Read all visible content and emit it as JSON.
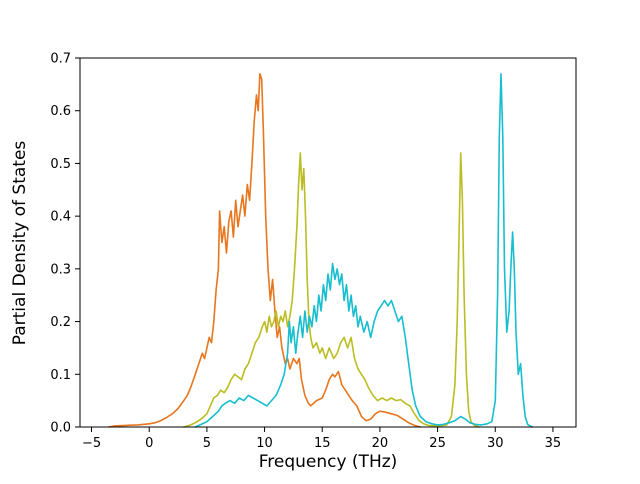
{
  "chart_data": {
    "type": "line",
    "title": "",
    "xlabel": "Frequency (THz)",
    "ylabel": "Partial Density of States",
    "xlim": [
      -6,
      37
    ],
    "ylim": [
      0,
      0.7
    ],
    "xtick_values": [
      -5,
      0,
      5,
      10,
      15,
      20,
      25,
      30,
      35
    ],
    "xtick_labels": [
      "−5",
      "0",
      "5",
      "10",
      "15",
      "20",
      "25",
      "30",
      "35"
    ],
    "ytick_values": [
      0.0,
      0.1,
      0.2,
      0.3,
      0.4,
      0.5,
      0.6,
      0.7
    ],
    "ytick_labels": [
      "0.0",
      "0.1",
      "0.2",
      "0.3",
      "0.4",
      "0.5",
      "0.6",
      "0.7"
    ],
    "grid": false,
    "legend_position": "none",
    "axes_color": "#000000",
    "background_color": "#ffffff",
    "series": [
      {
        "name": "orange-series",
        "color": "#e8761e",
        "points": [
          [
            -3.5,
            0
          ],
          [
            -3,
            0.002
          ],
          [
            -2,
            0.003
          ],
          [
            -1,
            0.004
          ],
          [
            0,
            0.006
          ],
          [
            0.5,
            0.008
          ],
          [
            1,
            0.012
          ],
          [
            1.5,
            0.018
          ],
          [
            2,
            0.025
          ],
          [
            2.5,
            0.035
          ],
          [
            3,
            0.05
          ],
          [
            3.3,
            0.06
          ],
          [
            3.6,
            0.075
          ],
          [
            4,
            0.1
          ],
          [
            4.3,
            0.12
          ],
          [
            4.6,
            0.14
          ],
          [
            4.8,
            0.13
          ],
          [
            5,
            0.15
          ],
          [
            5.2,
            0.17
          ],
          [
            5.4,
            0.16
          ],
          [
            5.6,
            0.2
          ],
          [
            5.8,
            0.26
          ],
          [
            6,
            0.3
          ],
          [
            6.1,
            0.41
          ],
          [
            6.3,
            0.35
          ],
          [
            6.5,
            0.38
          ],
          [
            6.7,
            0.33
          ],
          [
            6.9,
            0.39
          ],
          [
            7.1,
            0.41
          ],
          [
            7.3,
            0.36
          ],
          [
            7.5,
            0.43
          ],
          [
            7.7,
            0.38
          ],
          [
            7.9,
            0.41
          ],
          [
            8.1,
            0.44
          ],
          [
            8.3,
            0.4
          ],
          [
            8.5,
            0.46
          ],
          [
            8.7,
            0.43
          ],
          [
            8.9,
            0.5
          ],
          [
            9.1,
            0.58
          ],
          [
            9.3,
            0.63
          ],
          [
            9.45,
            0.6
          ],
          [
            9.6,
            0.67
          ],
          [
            9.75,
            0.66
          ],
          [
            9.9,
            0.56
          ],
          [
            10.1,
            0.4
          ],
          [
            10.3,
            0.3
          ],
          [
            10.5,
            0.24
          ],
          [
            10.7,
            0.28
          ],
          [
            10.9,
            0.22
          ],
          [
            11.1,
            0.17
          ],
          [
            11.3,
            0.19
          ],
          [
            11.5,
            0.15
          ],
          [
            11.8,
            0.12
          ],
          [
            12,
            0.13
          ],
          [
            12.2,
            0.11
          ],
          [
            12.5,
            0.13
          ],
          [
            12.8,
            0.12
          ],
          [
            13,
            0.13
          ],
          [
            13.2,
            0.09
          ],
          [
            13.5,
            0.06
          ],
          [
            13.8,
            0.045
          ],
          [
            14,
            0.04
          ],
          [
            14.5,
            0.05
          ],
          [
            15,
            0.055
          ],
          [
            15.3,
            0.07
          ],
          [
            15.6,
            0.09
          ],
          [
            15.9,
            0.1
          ],
          [
            16.1,
            0.095
          ],
          [
            16.4,
            0.105
          ],
          [
            16.7,
            0.08
          ],
          [
            17,
            0.07
          ],
          [
            17.3,
            0.06
          ],
          [
            17.6,
            0.05
          ],
          [
            18,
            0.04
          ],
          [
            18.4,
            0.02
          ],
          [
            18.8,
            0.012
          ],
          [
            19.2,
            0.015
          ],
          [
            19.6,
            0.025
          ],
          [
            20,
            0.03
          ],
          [
            20.5,
            0.028
          ],
          [
            21,
            0.025
          ],
          [
            21.5,
            0.022
          ],
          [
            22,
            0.015
          ],
          [
            22.5,
            0.008
          ],
          [
            23,
            0.003
          ],
          [
            23.5,
            0
          ]
        ]
      },
      {
        "name": "olive-series",
        "color": "#bcbd22",
        "points": [
          [
            3,
            0
          ],
          [
            3.5,
            0.003
          ],
          [
            4,
            0.008
          ],
          [
            4.5,
            0.015
          ],
          [
            5,
            0.025
          ],
          [
            5.3,
            0.04
          ],
          [
            5.6,
            0.055
          ],
          [
            5.9,
            0.06
          ],
          [
            6.2,
            0.07
          ],
          [
            6.5,
            0.065
          ],
          [
            6.8,
            0.075
          ],
          [
            7.1,
            0.09
          ],
          [
            7.4,
            0.1
          ],
          [
            7.7,
            0.095
          ],
          [
            8,
            0.09
          ],
          [
            8.3,
            0.11
          ],
          [
            8.6,
            0.12
          ],
          [
            8.9,
            0.14
          ],
          [
            9.2,
            0.16
          ],
          [
            9.5,
            0.17
          ],
          [
            9.8,
            0.19
          ],
          [
            10,
            0.2
          ],
          [
            10.2,
            0.18
          ],
          [
            10.4,
            0.21
          ],
          [
            10.6,
            0.19
          ],
          [
            10.8,
            0.2
          ],
          [
            11,
            0.22
          ],
          [
            11.2,
            0.19
          ],
          [
            11.4,
            0.21
          ],
          [
            11.6,
            0.2
          ],
          [
            11.8,
            0.22
          ],
          [
            12,
            0.19
          ],
          [
            12.2,
            0.21
          ],
          [
            12.4,
            0.24
          ],
          [
            12.6,
            0.3
          ],
          [
            12.8,
            0.38
          ],
          [
            12.95,
            0.46
          ],
          [
            13.1,
            0.52
          ],
          [
            13.25,
            0.45
          ],
          [
            13.4,
            0.49
          ],
          [
            13.55,
            0.4
          ],
          [
            13.7,
            0.28
          ],
          [
            13.85,
            0.2
          ],
          [
            14,
            0.17
          ],
          [
            14.2,
            0.15
          ],
          [
            14.5,
            0.16
          ],
          [
            14.8,
            0.14
          ],
          [
            15,
            0.15
          ],
          [
            15.3,
            0.13
          ],
          [
            15.6,
            0.15
          ],
          [
            16,
            0.13
          ],
          [
            16.3,
            0.14
          ],
          [
            16.6,
            0.16
          ],
          [
            16.9,
            0.17
          ],
          [
            17.2,
            0.15
          ],
          [
            17.5,
            0.17
          ],
          [
            17.8,
            0.13
          ],
          [
            18.1,
            0.11
          ],
          [
            18.4,
            0.1
          ],
          [
            18.7,
            0.09
          ],
          [
            19,
            0.075
          ],
          [
            19.4,
            0.06
          ],
          [
            19.8,
            0.05
          ],
          [
            20.2,
            0.055
          ],
          [
            20.6,
            0.05
          ],
          [
            21,
            0.055
          ],
          [
            21.4,
            0.05
          ],
          [
            21.8,
            0.052
          ],
          [
            22.2,
            0.045
          ],
          [
            22.6,
            0.04
          ],
          [
            23,
            0.025
          ],
          [
            23.4,
            0.012
          ],
          [
            23.8,
            0.006
          ],
          [
            24.2,
            0.003
          ],
          [
            25,
            0.002
          ],
          [
            25.8,
            0.004
          ],
          [
            26.2,
            0.02
          ],
          [
            26.5,
            0.08
          ],
          [
            26.7,
            0.2
          ],
          [
            26.85,
            0.35
          ],
          [
            27,
            0.52
          ],
          [
            27.15,
            0.43
          ],
          [
            27.3,
            0.25
          ],
          [
            27.5,
            0.1
          ],
          [
            27.7,
            0.03
          ],
          [
            27.9,
            0.01
          ],
          [
            28.2,
            0.003
          ],
          [
            28.6,
            0
          ]
        ]
      },
      {
        "name": "cyan-series",
        "color": "#17becf",
        "points": [
          [
            4,
            0
          ],
          [
            4.5,
            0.005
          ],
          [
            5,
            0.01
          ],
          [
            5.5,
            0.02
          ],
          [
            6,
            0.03
          ],
          [
            6.3,
            0.04
          ],
          [
            6.6,
            0.045
          ],
          [
            7,
            0.05
          ],
          [
            7.4,
            0.045
          ],
          [
            7.8,
            0.055
          ],
          [
            8.2,
            0.05
          ],
          [
            8.6,
            0.06
          ],
          [
            9,
            0.055
          ],
          [
            9.4,
            0.05
          ],
          [
            9.8,
            0.045
          ],
          [
            10.2,
            0.04
          ],
          [
            10.6,
            0.05
          ],
          [
            11,
            0.06
          ],
          [
            11.4,
            0.08
          ],
          [
            11.7,
            0.1
          ],
          [
            12,
            0.14
          ],
          [
            12.15,
            0.2
          ],
          [
            12.3,
            0.16
          ],
          [
            12.5,
            0.19
          ],
          [
            12.7,
            0.14
          ],
          [
            12.9,
            0.18
          ],
          [
            13.1,
            0.21
          ],
          [
            13.3,
            0.17
          ],
          [
            13.5,
            0.22
          ],
          [
            13.7,
            0.18
          ],
          [
            13.9,
            0.21
          ],
          [
            14.1,
            0.19
          ],
          [
            14.3,
            0.23
          ],
          [
            14.5,
            0.2
          ],
          [
            14.7,
            0.25
          ],
          [
            14.9,
            0.22
          ],
          [
            15.1,
            0.27
          ],
          [
            15.3,
            0.24
          ],
          [
            15.5,
            0.29
          ],
          [
            15.7,
            0.26
          ],
          [
            15.9,
            0.31
          ],
          [
            16.1,
            0.28
          ],
          [
            16.3,
            0.3
          ],
          [
            16.5,
            0.27
          ],
          [
            16.7,
            0.29
          ],
          [
            16.9,
            0.24
          ],
          [
            17.1,
            0.27
          ],
          [
            17.3,
            0.22
          ],
          [
            17.5,
            0.25
          ],
          [
            17.7,
            0.21
          ],
          [
            17.9,
            0.23
          ],
          [
            18.1,
            0.19
          ],
          [
            18.3,
            0.21
          ],
          [
            18.6,
            0.18
          ],
          [
            18.9,
            0.2
          ],
          [
            19.2,
            0.17
          ],
          [
            19.5,
            0.2
          ],
          [
            19.8,
            0.22
          ],
          [
            20.1,
            0.23
          ],
          [
            20.4,
            0.24
          ],
          [
            20.7,
            0.23
          ],
          [
            21,
            0.24
          ],
          [
            21.3,
            0.22
          ],
          [
            21.6,
            0.2
          ],
          [
            21.9,
            0.21
          ],
          [
            22.2,
            0.17
          ],
          [
            22.5,
            0.12
          ],
          [
            22.8,
            0.07
          ],
          [
            23.1,
            0.04
          ],
          [
            23.5,
            0.02
          ],
          [
            24,
            0.01
          ],
          [
            24.5,
            0.006
          ],
          [
            25,
            0.004
          ],
          [
            25.5,
            0.005
          ],
          [
            26,
            0.008
          ],
          [
            26.5,
            0.012
          ],
          [
            27,
            0.02
          ],
          [
            27.4,
            0.015
          ],
          [
            27.8,
            0.008
          ],
          [
            28.3,
            0.005
          ],
          [
            28.8,
            0.004
          ],
          [
            29.3,
            0.006
          ],
          [
            29.7,
            0.01
          ],
          [
            30,
            0.05
          ],
          [
            30.2,
            0.25
          ],
          [
            30.35,
            0.55
          ],
          [
            30.5,
            0.67
          ],
          [
            30.65,
            0.55
          ],
          [
            30.8,
            0.3
          ],
          [
            31,
            0.18
          ],
          [
            31.2,
            0.22
          ],
          [
            31.35,
            0.3
          ],
          [
            31.5,
            0.37
          ],
          [
            31.65,
            0.3
          ],
          [
            31.8,
            0.18
          ],
          [
            32,
            0.1
          ],
          [
            32.2,
            0.12
          ],
          [
            32.4,
            0.06
          ],
          [
            32.6,
            0.02
          ],
          [
            32.8,
            0.005
          ],
          [
            33.2,
            0
          ]
        ]
      }
    ]
  }
}
